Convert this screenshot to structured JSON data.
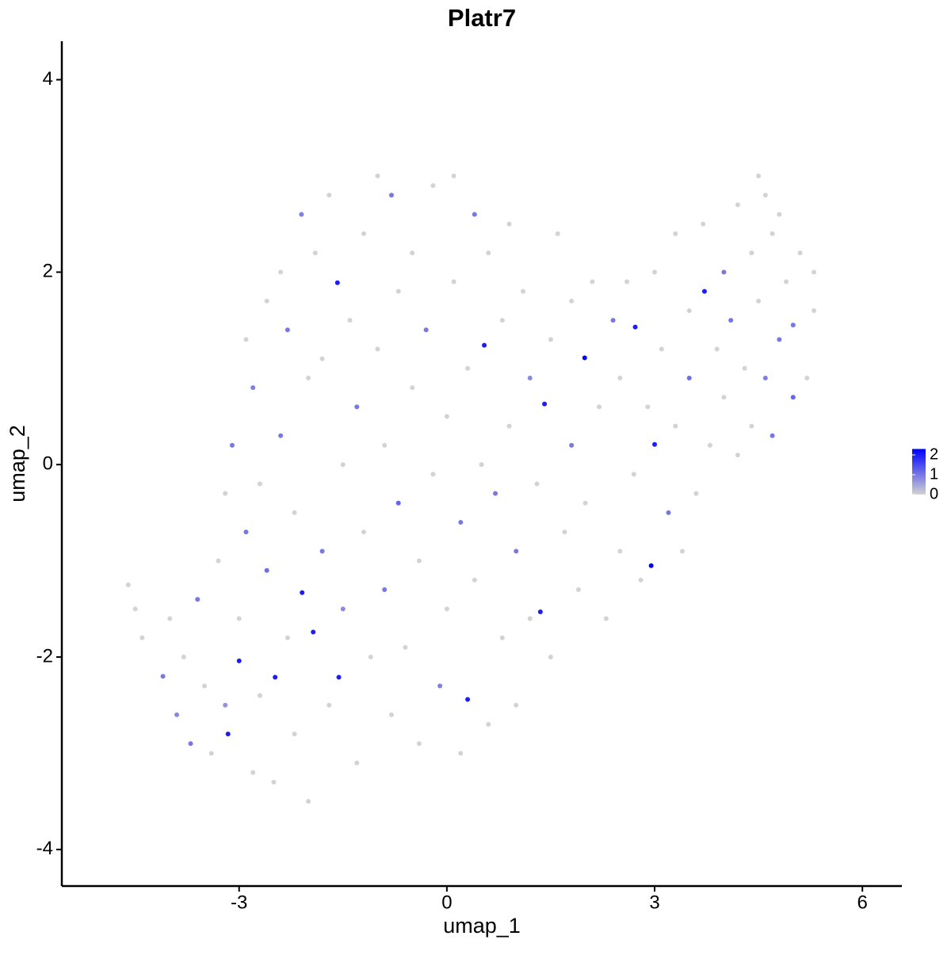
{
  "chart_data": {
    "type": "scatter",
    "title": "Platr7",
    "x_label": "umap_1",
    "y_label": "umap_2",
    "xlim": [
      -5.56,
      6.57
    ],
    "ylim": [
      -4.38,
      4.4
    ],
    "xticks": [
      -3,
      0,
      3,
      6
    ],
    "yticks": [
      -4,
      -2,
      0,
      2,
      4
    ],
    "color_low": "#d3d3d3",
    "color_high": "#0000ff",
    "clim": [
      0,
      2.3
    ],
    "cticks": [
      0,
      1,
      2
    ],
    "x": [
      -4.6,
      -4.5,
      -4.4,
      -4.1,
      -4.0,
      -3.9,
      -3.8,
      -3.7,
      -3.6,
      -3.5,
      -3.4,
      -3.3,
      -3.2,
      -3.2,
      -3.16,
      -3.1,
      -3.0,
      -3.0,
      -2.9,
      -2.9,
      -2.8,
      -2.8,
      -2.7,
      -2.7,
      -2.6,
      -2.6,
      -2.5,
      -2.48,
      -2.4,
      -2.4,
      -2.3,
      -2.3,
      -2.2,
      -2.2,
      -2.1,
      -2.09,
      -2.0,
      -2.0,
      -1.93,
      -1.9,
      -1.8,
      -1.8,
      -1.7,
      -1.7,
      -1.58,
      -1.56,
      -1.5,
      -1.5,
      -1.4,
      -1.3,
      -1.3,
      -1.2,
      -1.2,
      -1.1,
      -1.0,
      -1.0,
      -0.9,
      -0.9,
      -0.8,
      -0.8,
      -0.7,
      -0.7,
      -0.6,
      -0.5,
      -0.5,
      -0.4,
      -0.4,
      -0.3,
      -0.2,
      -0.2,
      -0.1,
      0.0,
      0.0,
      0.1,
      0.1,
      0.2,
      0.2,
      0.3,
      0.3,
      0.4,
      0.4,
      0.5,
      0.54,
      0.6,
      0.6,
      0.7,
      0.8,
      0.8,
      0.9,
      0.9,
      1.0,
      1.0,
      1.1,
      1.2,
      1.2,
      1.3,
      1.35,
      1.41,
      1.5,
      1.5,
      1.6,
      1.7,
      1.8,
      1.8,
      1.9,
      1.99,
      2.0,
      2.1,
      2.2,
      2.3,
      2.4,
      2.5,
      2.5,
      2.6,
      2.72,
      2.7,
      2.8,
      2.9,
      2.95,
      3.0,
      3.0,
      3.1,
      3.2,
      3.3,
      3.3,
      3.4,
      3.5,
      3.5,
      3.6,
      3.72,
      3.7,
      3.8,
      3.9,
      4.0,
      4.0,
      4.1,
      4.2,
      4.2,
      4.3,
      4.4,
      4.4,
      4.5,
      4.5,
      4.6,
      4.6,
      4.7,
      4.7,
      4.8,
      4.8,
      4.9,
      5.0,
      5.0,
      5.1,
      5.2,
      5.3,
      5.3
    ],
    "y": [
      -1.25,
      -1.5,
      -1.8,
      -2.2,
      -1.6,
      -2.6,
      -2.0,
      -2.9,
      -1.4,
      -2.3,
      -3.0,
      -1.0,
      -0.3,
      -2.5,
      -2.8,
      0.2,
      -2.04,
      -1.6,
      -0.7,
      1.3,
      -3.2,
      0.8,
      -2.4,
      -0.2,
      1.7,
      -1.1,
      -3.3,
      -2.21,
      0.3,
      2.0,
      -1.8,
      1.4,
      -2.8,
      -0.5,
      2.6,
      -1.33,
      0.9,
      -3.5,
      -1.74,
      2.2,
      -0.9,
      1.1,
      -2.5,
      2.8,
      1.89,
      -2.21,
      0.0,
      -1.5,
      1.5,
      -3.1,
      0.6,
      2.4,
      -0.7,
      -2.0,
      3.0,
      1.2,
      -1.3,
      0.2,
      2.8,
      -2.6,
      1.8,
      -0.4,
      -1.9,
      2.2,
      0.8,
      -2.9,
      -1.0,
      1.4,
      2.9,
      -0.1,
      -2.3,
      0.5,
      -1.5,
      3.0,
      1.9,
      -3.0,
      -0.6,
      -2.44,
      1.0,
      2.6,
      -1.2,
      0.0,
      1.24,
      -2.7,
      2.2,
      -0.3,
      -1.8,
      1.5,
      2.5,
      0.4,
      -2.5,
      -0.9,
      1.8,
      -1.6,
      0.9,
      -0.2,
      -1.53,
      0.63,
      1.3,
      -2.0,
      2.4,
      -0.7,
      0.2,
      1.7,
      -1.3,
      1.11,
      -0.4,
      1.9,
      0.6,
      -1.6,
      1.5,
      -0.9,
      0.9,
      1.9,
      1.43,
      -0.1,
      -1.2,
      0.6,
      -1.05,
      0.21,
      2.0,
      1.2,
      -0.5,
      2.4,
      0.4,
      -0.9,
      1.6,
      0.9,
      -0.3,
      1.8,
      2.5,
      0.2,
      1.2,
      2.0,
      0.7,
      1.5,
      2.7,
      0.1,
      1.0,
      2.2,
      0.4,
      3.0,
      1.7,
      2.8,
      0.9,
      2.4,
      0.3,
      1.3,
      2.6,
      1.9,
      0.7,
      1.45,
      2.2,
      0.9,
      2.0,
      1.6
    ],
    "values": [
      0,
      0,
      0,
      1,
      0,
      0.8,
      0,
      1,
      1,
      0,
      0,
      0,
      0,
      0.7,
      2,
      1,
      2,
      0,
      1,
      0,
      0,
      0.9,
      0,
      0,
      0,
      1.1,
      0,
      2,
      1,
      0,
      0,
      1,
      0,
      0,
      0.9,
      2,
      0,
      0,
      2,
      0,
      1,
      0,
      0,
      0,
      2,
      2,
      0,
      0.8,
      0,
      0,
      1,
      0,
      0,
      0,
      0,
      0,
      1,
      0,
      1,
      0,
      0,
      1.2,
      0,
      0,
      0,
      0,
      0,
      1,
      0,
      0,
      0.9,
      0,
      0,
      0,
      0,
      0,
      1,
      2,
      0,
      1,
      0,
      0,
      2,
      0,
      0,
      1,
      0,
      0,
      0,
      0,
      0,
      1,
      0,
      0,
      0.8,
      0,
      2,
      2,
      0,
      0,
      0,
      0,
      1,
      0,
      0,
      2.3,
      0,
      0,
      0,
      0,
      1,
      0,
      0,
      0,
      2,
      0,
      0,
      0,
      2.3,
      2,
      0,
      0,
      1,
      0,
      0,
      0,
      0,
      1.1,
      0,
      2,
      0,
      0,
      0,
      1,
      0,
      1,
      0,
      0,
      0,
      0,
      0,
      0,
      0,
      0,
      0.9,
      0,
      1,
      1,
      0,
      0,
      1.2,
      1,
      0,
      0,
      0,
      0
    ]
  }
}
